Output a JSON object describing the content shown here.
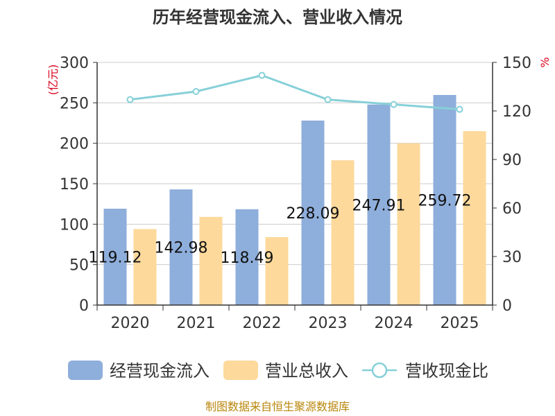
{
  "chart_data": {
    "type": "bar",
    "title": "历年经营现金流入、营业收入情况",
    "categories": [
      "2020",
      "2021",
      "2022",
      "2023",
      "2024",
      "2025"
    ],
    "y_left": {
      "label": "(亿元)",
      "ticks": [
        "0",
        "50",
        "100",
        "150",
        "200",
        "250",
        "300"
      ],
      "range": [
        0,
        300
      ]
    },
    "y_right": {
      "label": "%",
      "ticks": [
        "0",
        "30",
        "60",
        "90",
        "120",
        "150"
      ],
      "range": [
        0,
        150
      ]
    },
    "series": [
      {
        "name": "经营现金流入",
        "type": "bar",
        "axis": "left",
        "color": "#8eaedb",
        "values": [
          119.12,
          142.98,
          118.49,
          228.09,
          247.91,
          259.72
        ],
        "data_labels": [
          "119.12",
          "142.98",
          "118.49",
          "228.09",
          "247.91",
          "259.72"
        ]
      },
      {
        "name": "营业总收入",
        "type": "bar",
        "axis": "left",
        "color": "#fdd99b",
        "values": [
          94,
          109,
          84,
          179,
          200,
          215
        ]
      },
      {
        "name": "营收现金比",
        "type": "line",
        "axis": "right",
        "color": "#86d0d8",
        "values": [
          127,
          132,
          142,
          127,
          124,
          121
        ]
      }
    ],
    "grid": true,
    "legend": "bottom"
  },
  "footer": {
    "source": "制图数据来自恒生聚源数据库"
  }
}
